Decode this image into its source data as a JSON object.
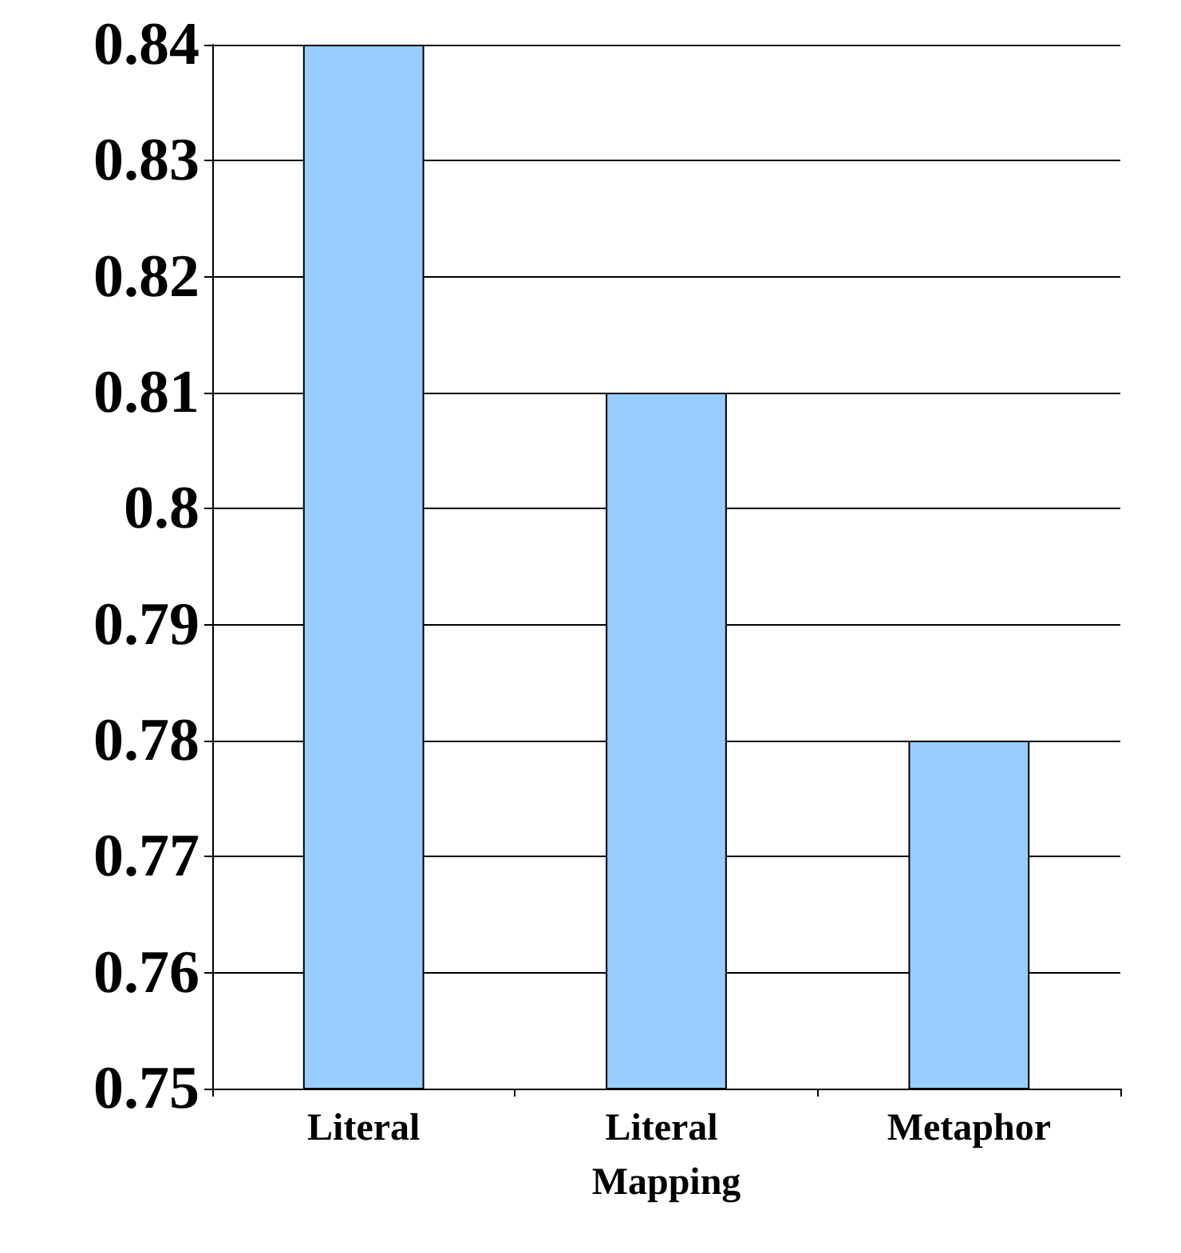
{
  "chart_data": {
    "type": "bar",
    "categories": [
      "Literal",
      "Literal Mapping",
      "Metaphor"
    ],
    "values": [
      0.84,
      0.81,
      0.78
    ],
    "color": "#99ccff",
    "ylim": [
      0.75,
      0.84
    ],
    "yticks": [
      0.75,
      0.76,
      0.77,
      0.78,
      0.79,
      0.8,
      0.81,
      0.82,
      0.83,
      0.84
    ],
    "grid": "y"
  }
}
